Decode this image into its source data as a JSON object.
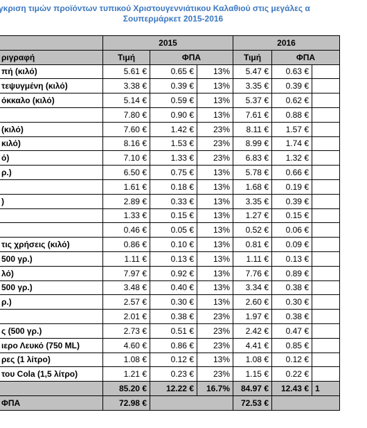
{
  "title": {
    "line1": "γκριση τιμών προϊόντων τυπικού Χριστουγεννιάτικου Καλαθιού στις μεγάλες α",
    "line2": "Σουπερμάρκετ 2015-2016"
  },
  "header": {
    "year1": "2015",
    "year2": "2016",
    "desc": "ριγραφή",
    "price1": "Τιμή",
    "vat1": "ΦΠΑ",
    "price2": "Τιμή",
    "vat2": "ΦΠΑ"
  },
  "rows": [
    {
      "desc": "πή (κιλό)",
      "p15": "5.61 €",
      "v15": "0.65 €",
      "r15": "13%",
      "p16": "5.47 €",
      "v16": "0.63 €"
    },
    {
      "desc": "τεψυγμένη (κιλό)",
      "p15": "3.38 €",
      "v15": "0.39 €",
      "r15": "13%",
      "p16": "3.35 €",
      "v16": "0.39 €"
    },
    {
      "desc": "όκκαλο (κιλό)",
      "p15": "5.14 €",
      "v15": "0.59 €",
      "r15": "13%",
      "p16": "5.37 €",
      "v16": "0.62 €"
    },
    {
      "desc": "",
      "p15": "7.80 €",
      "v15": "0.90 €",
      "r15": "13%",
      "p16": "7.61 €",
      "v16": "0.88 €"
    },
    {
      "desc": "(κιλό)",
      "p15": "7.60 €",
      "v15": "1.42 €",
      "r15": "23%",
      "p16": "8.11 €",
      "v16": "1.57 €"
    },
    {
      "desc": "κιλό)",
      "p15": "8.16 €",
      "v15": "1.53 €",
      "r15": "23%",
      "p16": "8.99 €",
      "v16": "1.74 €"
    },
    {
      "desc": "ό)",
      "p15": "7.10 €",
      "v15": "1.33 €",
      "r15": "23%",
      "p16": "6.83 €",
      "v16": "1.32 €"
    },
    {
      "desc": "ρ.)",
      "p15": "6.50 €",
      "v15": "0.75 €",
      "r15": "13%",
      "p16": "5.78 €",
      "v16": "0.66 €"
    },
    {
      "desc": "",
      "p15": "1.61 €",
      "v15": "0.18 €",
      "r15": "13%",
      "p16": "1.68 €",
      "v16": "0.19 €"
    },
    {
      "desc": ")",
      "p15": "2.89 €",
      "v15": "0.33 €",
      "r15": "13%",
      "p16": "3.35 €",
      "v16": "0.39 €"
    },
    {
      "desc": "",
      "p15": "1.33 €",
      "v15": "0.15 €",
      "r15": "13%",
      "p16": "1.27 €",
      "v16": "0.15 €"
    },
    {
      "desc": "",
      "p15": "0.46 €",
      "v15": "0.05 €",
      "r15": "13%",
      "p16": "0.52 €",
      "v16": "0.06 €"
    },
    {
      "desc": "τις χρήσεις (κιλό)",
      "p15": "0.86 €",
      "v15": "0.10 €",
      "r15": "13%",
      "p16": "0.81 €",
      "v16": "0.09 €"
    },
    {
      "desc": "500 γρ.)",
      "p15": "1.11 €",
      "v15": "0.13 €",
      "r15": "13%",
      "p16": "1.11 €",
      "v16": "0.13 €"
    },
    {
      "desc": "λό)",
      "p15": "7.97 €",
      "v15": "0.92 €",
      "r15": "13%",
      "p16": "7.76 €",
      "v16": "0.89 €"
    },
    {
      "desc": "500 γρ.)",
      "p15": "3.48 €",
      "v15": "0.40 €",
      "r15": "13%",
      "p16": "3.34 €",
      "v16": "0.38 €"
    },
    {
      "desc": "ρ.)",
      "p15": "2.57 €",
      "v15": "0.30 €",
      "r15": "13%",
      "p16": "2.60 €",
      "v16": "0.30 €"
    },
    {
      "desc": "",
      "p15": "2.01 €",
      "v15": "0.38 €",
      "r15": "23%",
      "p16": "1.97 €",
      "v16": "0.38 €"
    },
    {
      "desc": "ς (500 γρ.)",
      "p15": "2.73 €",
      "v15": "0.51 €",
      "r15": "23%",
      "p16": "2.42 €",
      "v16": "0.47 €"
    },
    {
      "desc": "ιερο Λευκό (750 ML)",
      "p15": "4.60 €",
      "v15": "0.86 €",
      "r15": "23%",
      "p16": "4.41 €",
      "v16": "0.85 €"
    },
    {
      "desc": "ρες (1 λίτρο)",
      "p15": "1.08 €",
      "v15": "0.12 €",
      "r15": "13%",
      "p16": "1.08 €",
      "v16": "0.12 €"
    },
    {
      "desc": "του Cola (1,5 λίτρο)",
      "p15": "1.21 €",
      "v15": "0.23 €",
      "r15": "23%",
      "p16": "1.15 €",
      "v16": "0.22 €"
    }
  ],
  "totals": {
    "p15": "85.20 €",
    "v15": "12.22 €",
    "r15": "16.7%",
    "p16": "84.97 €",
    "v16": "12.43 €",
    "r16": "1"
  },
  "net": {
    "label": "ΦΠΑ",
    "p15": "72.98 €",
    "p16": "72.53 €"
  }
}
